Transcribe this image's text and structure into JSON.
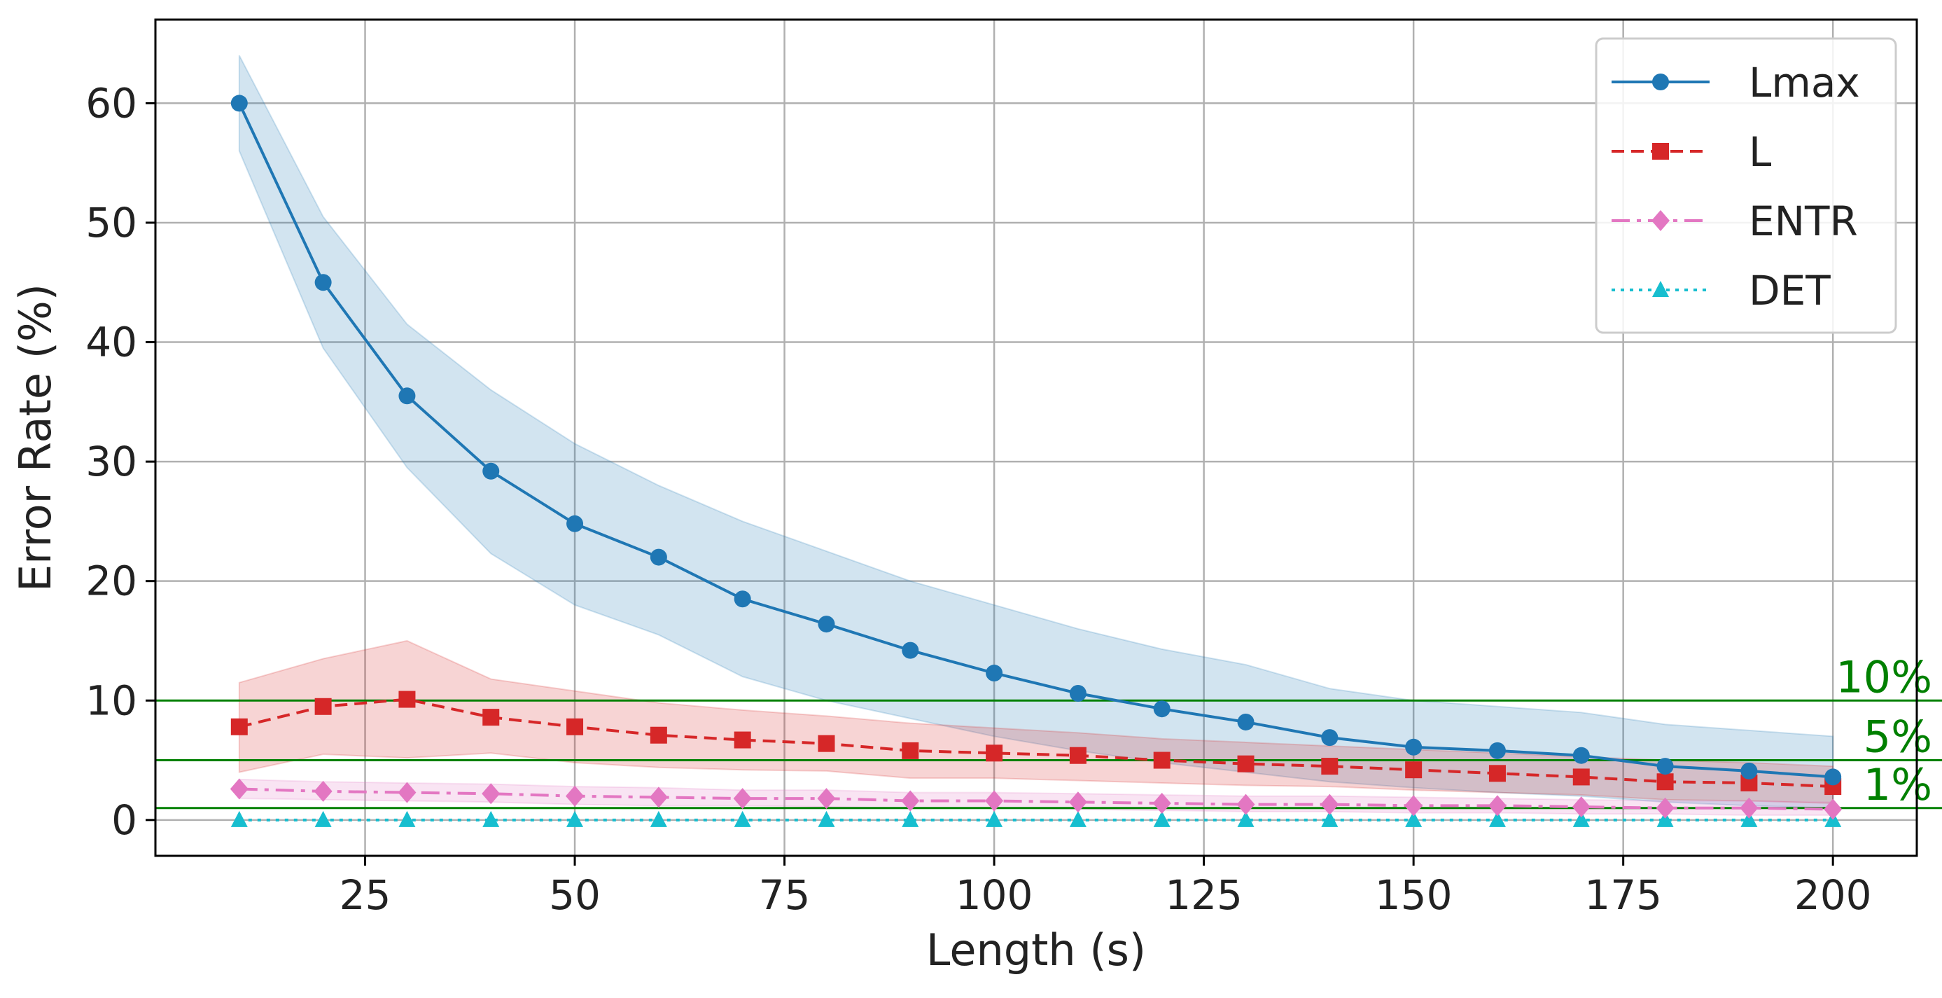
{
  "chart_data": {
    "type": "line",
    "title": "",
    "xlabel": "Length (s)",
    "ylabel": "Error Rate (%)",
    "xlim": [
      0,
      210
    ],
    "ylim": [
      -3,
      67
    ],
    "xticks": [
      25,
      50,
      75,
      100,
      125,
      150,
      175,
      200
    ],
    "yticks": [
      0,
      10,
      20,
      30,
      40,
      50,
      60
    ],
    "grid": true,
    "legend_position": "top-right",
    "x": [
      10,
      20,
      30,
      40,
      50,
      60,
      70,
      80,
      90,
      100,
      110,
      120,
      130,
      140,
      150,
      160,
      170,
      180,
      190,
      200
    ],
    "series": [
      {
        "name": "Lmax",
        "color": "#1f77b4",
        "marker": "circle",
        "linestyle": "solid",
        "values": [
          60,
          45,
          35.5,
          29.2,
          24.8,
          22,
          18.5,
          16.4,
          14.2,
          12.3,
          10.6,
          9.3,
          8.2,
          6.9,
          6.1,
          5.8,
          5.4,
          4.5,
          4.1,
          3.6
        ],
        "band_upper": [
          64,
          50.5,
          41.5,
          36,
          31.5,
          28,
          25,
          22.5,
          20,
          18,
          16,
          14.3,
          13,
          11,
          10,
          9.5,
          9,
          8,
          7.5,
          7
        ],
        "band_lower": [
          56,
          39.5,
          29.5,
          22.3,
          18,
          15.5,
          12,
          10,
          8.5,
          7,
          5.8,
          4.8,
          4,
          3.2,
          2.7,
          2.3,
          2,
          1.5,
          1.2,
          1
        ]
      },
      {
        "name": "L",
        "color": "#d62728",
        "marker": "square",
        "linestyle": "dashed",
        "values": [
          7.8,
          9.5,
          10.1,
          8.6,
          7.8,
          7.1,
          6.7,
          6.4,
          5.8,
          5.6,
          5.4,
          5,
          4.7,
          4.5,
          4.2,
          3.9,
          3.6,
          3.2,
          3.1,
          2.8
        ],
        "band_upper": [
          11.5,
          13.5,
          15,
          11.8,
          10.8,
          9.8,
          9.2,
          8.7,
          8.1,
          7.7,
          7.3,
          6.8,
          6.5,
          6.2,
          5.9,
          5.6,
          5.3,
          5,
          4.8,
          4.5
        ],
        "band_lower": [
          4,
          5.5,
          5.2,
          5.6,
          4.8,
          4.4,
          4.2,
          4.1,
          3.5,
          3.5,
          3.3,
          3.1,
          2.9,
          2.8,
          2.5,
          2.3,
          2.1,
          1.7,
          1.6,
          1.4
        ]
      },
      {
        "name": "ENTR",
        "color": "#e377c2",
        "marker": "diamond",
        "linestyle": "dashdot",
        "values": [
          2.6,
          2.4,
          2.3,
          2.2,
          2.0,
          1.9,
          1.8,
          1.8,
          1.6,
          1.6,
          1.5,
          1.4,
          1.3,
          1.3,
          1.2,
          1.2,
          1.1,
          1.0,
          1.0,
          0.9
        ],
        "band_upper": [
          3.4,
          3.2,
          3.1,
          3.0,
          2.8,
          2.7,
          2.5,
          2.5,
          2.3,
          2.3,
          2.2,
          2.1,
          2.0,
          2.0,
          1.9,
          1.8,
          1.7,
          1.6,
          1.6,
          1.5
        ],
        "band_lower": [
          1.8,
          1.7,
          1.6,
          1.5,
          1.3,
          1.2,
          1.2,
          1.1,
          1.0,
          1.0,
          0.9,
          0.8,
          0.7,
          0.7,
          0.6,
          0.6,
          0.5,
          0.5,
          0.4,
          0.4
        ]
      },
      {
        "name": "DET",
        "color": "#17becf",
        "marker": "triangle",
        "linestyle": "dotted",
        "values": [
          0,
          0,
          0,
          0,
          0,
          0,
          0,
          0,
          0,
          0,
          0,
          0,
          0,
          0,
          0,
          0,
          0,
          0,
          0,
          0
        ]
      }
    ],
    "thresholds": [
      {
        "value": 10,
        "label": "10%",
        "color": "#008000"
      },
      {
        "value": 5,
        "label": "5%",
        "color": "#008000"
      },
      {
        "value": 1,
        "label": "1%",
        "color": "#008000"
      }
    ]
  }
}
